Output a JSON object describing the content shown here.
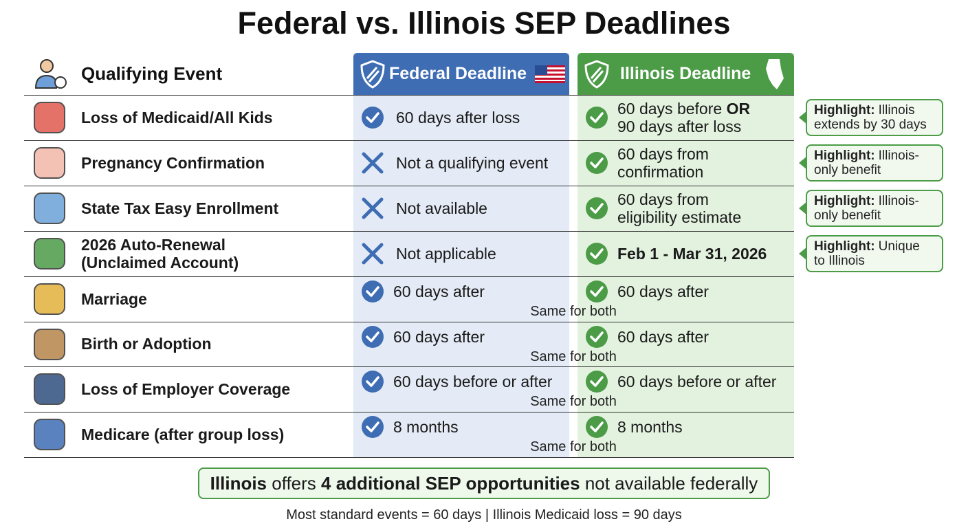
{
  "title": "Federal vs. Illinois SEP Deadlines",
  "header": {
    "event": "Qualifying Event",
    "federal": "Federal Deadline",
    "illinois": "Illinois Deadline"
  },
  "rows": [
    {
      "event": [
        "Loss of Medicaid/All Kids"
      ],
      "federal": {
        "status": "check",
        "lines": [
          "60 days after loss"
        ]
      },
      "illinois": [
        [
          {
            "text": "60 days before "
          },
          {
            "text": "OR",
            "bold": true
          }
        ],
        "90 days after loss"
      ],
      "highlight": {
        "label": "Highlight:",
        "lines": [
          "Illinois",
          "extends by 30 days"
        ]
      }
    },
    {
      "event": [
        "Pregnancy Confirmation"
      ],
      "federal": {
        "status": "cross",
        "lines": [
          "Not a qualifying event"
        ]
      },
      "illinois": [
        "60 days from",
        "confirmation"
      ],
      "highlight": {
        "label": "Highlight:",
        "lines": [
          "Illinois-",
          "only benefit"
        ]
      }
    },
    {
      "event": [
        "State Tax Easy Enrollment"
      ],
      "federal": {
        "status": "cross",
        "lines": [
          "Not available"
        ]
      },
      "illinois": [
        "60 days from",
        "eligibility estimate"
      ],
      "highlight": {
        "label": "Highlight:",
        "lines": [
          "Illinois-",
          "only benefit"
        ]
      }
    },
    {
      "event": [
        "2026 Auto-Renewal",
        "(Unclaimed Account)"
      ],
      "federal": {
        "status": "cross",
        "lines": [
          "Not applicable"
        ]
      },
      "illinois": [
        [
          {
            "text": "Feb 1 - Mar 31, 2026",
            "bold": true
          }
        ]
      ],
      "highlight": {
        "label": "Highlight:",
        "lines": [
          "Unique",
          "to Illinois"
        ]
      }
    },
    {
      "event": [
        "Marriage"
      ],
      "federal": {
        "status": "check",
        "lines": [
          "60 days after"
        ]
      },
      "illinois": [
        "60 days after"
      ],
      "note": "Same for both"
    },
    {
      "event": [
        "Birth or Adoption"
      ],
      "federal": {
        "status": "check",
        "lines": [
          "60 days after"
        ]
      },
      "illinois": [
        "60 days after"
      ],
      "note": "Same for both"
    },
    {
      "event": [
        "Loss of Employer Coverage"
      ],
      "federal": {
        "status": "check",
        "lines": [
          "60 days before or after"
        ]
      },
      "illinois": [
        "60 days before or after"
      ],
      "note": "Same for both"
    },
    {
      "event": [
        "Medicare (after group loss)"
      ],
      "federal": {
        "status": "check",
        "lines": [
          "8 months"
        ]
      },
      "illinois": [
        "8 months"
      ],
      "note": "Same for both"
    }
  ],
  "banner": [
    {
      "text": "Illinois",
      "bold": true
    },
    {
      "text": " offers "
    },
    {
      "text": "4 additional SEP opportunities",
      "bold": true
    },
    {
      "text": " not available federally"
    }
  ],
  "footnote": "Most standard events = 60 days | Illinois Medicaid loss = 90 days"
}
